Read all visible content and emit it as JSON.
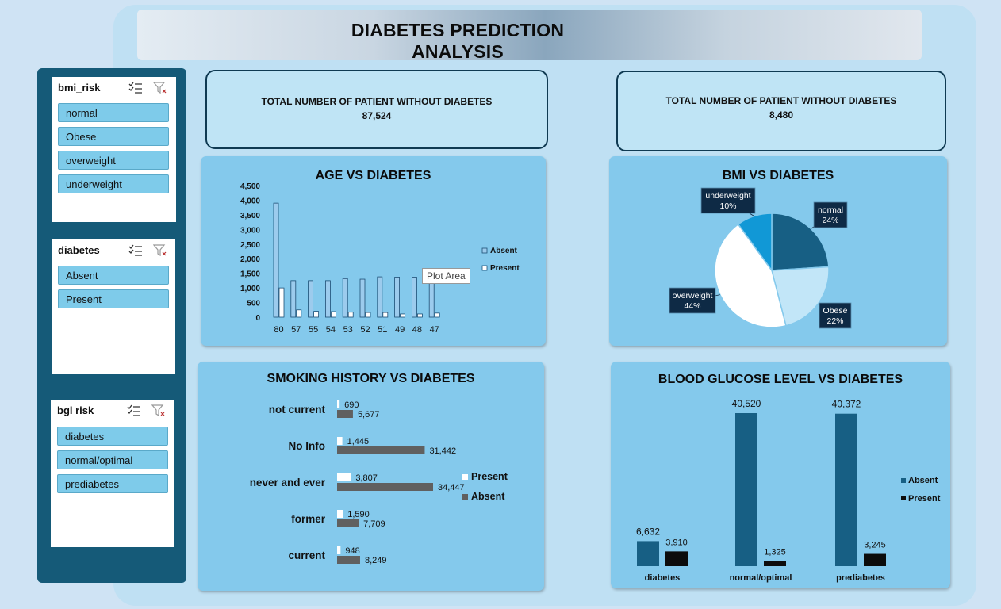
{
  "header": {
    "title": "DIABETES PREDICTION ANALYSIS"
  },
  "slicers": [
    {
      "title": "bmi_risk",
      "items": [
        "normal",
        "Obese",
        "overweight",
        "underweight"
      ]
    },
    {
      "title": "diabetes",
      "items": [
        "Absent",
        "Present"
      ]
    },
    {
      "title": "bgl risk",
      "items": [
        "diabetes",
        "normal/optimal",
        "prediabetes"
      ]
    }
  ],
  "kpis": [
    {
      "label": "TOTAL NUMBER OF PATIENT WITHOUT DIABETES",
      "value": "87,524"
    },
    {
      "label": "TOTAL NUMBER OF PATIENT WITHOUT DIABETES",
      "value": "8,480"
    }
  ],
  "tooltip": "Plot Area",
  "colors": {
    "absent_blue": "#175f84",
    "present_dark": "#0c0c0c",
    "age_absent": "#9ccbed",
    "smoke_absent": "#606060"
  },
  "chart_data": [
    {
      "type": "bar",
      "title": "AGE  VS DIABETES",
      "categories": [
        "80",
        "57",
        "55",
        "54",
        "53",
        "52",
        "51",
        "49",
        "48",
        "47"
      ],
      "series": [
        {
          "name": "Absent",
          "values": [
            3900,
            1250,
            1250,
            1250,
            1320,
            1300,
            1380,
            1370,
            1370,
            1400
          ]
        },
        {
          "name": "Present",
          "values": [
            1000,
            250,
            200,
            190,
            170,
            160,
            160,
            110,
            110,
            140
          ]
        }
      ],
      "yticks": [
        "4,500",
        "4,000",
        "3,500",
        "3,000",
        "2,500",
        "2,000",
        "1,500",
        "1,000",
        "500",
        "0"
      ],
      "ylim": [
        0,
        4500
      ],
      "legend": "right"
    },
    {
      "type": "pie",
      "title": "BMI VS DIABETES",
      "labels": [
        "normal",
        "Obese",
        "overweight",
        "underweight"
      ],
      "values": [
        24,
        22,
        44,
        10
      ],
      "value_labels": [
        "24%",
        "22%",
        "44%",
        "10%"
      ],
      "colors": [
        "#175f84",
        "#c2e6f8",
        "#ffffff",
        "#1198d6"
      ]
    },
    {
      "type": "bar",
      "orientation": "horizontal",
      "title": "SMOKING HISTORY VS DIABETES",
      "categories": [
        "not current",
        "No Info",
        "never and ever",
        "former",
        "current"
      ],
      "series": [
        {
          "name": "Present",
          "values": [
            690,
            1445,
            3807,
            1590,
            948
          ],
          "labels": [
            "690",
            "1,445",
            "3,807",
            "1,590",
            "948"
          ]
        },
        {
          "name": "Absent",
          "values": [
            5677,
            31442,
            34447,
            7709,
            8249
          ],
          "labels": [
            "5,677",
            "31,442",
            "34,447",
            "7,709",
            "8,249"
          ]
        }
      ],
      "legend": "right"
    },
    {
      "type": "bar",
      "title": "BLOOD GLUCOSE LEVEL VS DIABETES",
      "categories": [
        "diabetes",
        "normal/optimal",
        "prediabetes"
      ],
      "series": [
        {
          "name": "Absent",
          "values": [
            6632,
            40520,
            40372
          ],
          "labels": [
            "6,632",
            "40,520",
            "40,372"
          ]
        },
        {
          "name": "Present",
          "values": [
            3910,
            1325,
            3245
          ],
          "labels": [
            "3,910",
            "1,325",
            "3,245"
          ]
        }
      ],
      "legend": "right"
    }
  ]
}
